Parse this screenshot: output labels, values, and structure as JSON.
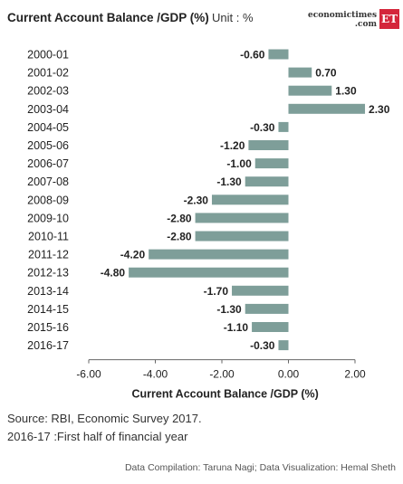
{
  "header": {
    "title": "Current Account Balance /GDP (%)",
    "unit": "Unit : %",
    "logo_line1": "economictimes",
    "logo_line2": ".com",
    "logo_badge": "ET"
  },
  "footer": {
    "source": "Source: RBI, Economic Survey 2017.",
    "note": "2016-17 :First half of financial year",
    "credit": "Data Compilation: Taruna Nagi; Data Visualization: Hemal Sheth"
  },
  "colors": {
    "bar": "#7e9e99",
    "axis": "#666666",
    "text": "#222222"
  },
  "chart_data": {
    "type": "bar",
    "orientation": "horizontal",
    "categories": [
      "2000-01",
      "2001-02",
      "2002-03",
      "2003-04",
      "2004-05",
      "2005-06",
      "2006-07",
      "2007-08",
      "2008-09",
      "2009-10",
      "2010-11",
      "2011-12",
      "2012-13",
      "2013-14",
      "2014-15",
      "2015-16",
      "2016-17"
    ],
    "values": [
      -0.6,
      0.7,
      1.3,
      2.3,
      -0.3,
      -1.2,
      -1.0,
      -1.3,
      -2.3,
      -2.8,
      -2.8,
      -4.2,
      -4.8,
      -1.7,
      -1.3,
      -1.1,
      -0.3
    ],
    "value_labels": [
      "-0.60",
      "0.70",
      "1.30",
      "2.30",
      "-0.30",
      "-1.20",
      "-1.00",
      "-1.30",
      "-2.30",
      "-2.80",
      "-2.80",
      "-4.20",
      "-4.80",
      "-1.70",
      "-1.30",
      "-1.10",
      "-0.30"
    ],
    "xlim": [
      -6.0,
      2.0
    ],
    "xticks": [
      -6,
      -4,
      -2,
      0,
      2
    ],
    "xtick_labels": [
      "-6.00",
      "-4.00",
      "-2.00",
      "0.00",
      "2.00"
    ],
    "xlabel": "Current Account Balance /GDP (%)",
    "grid": false
  }
}
